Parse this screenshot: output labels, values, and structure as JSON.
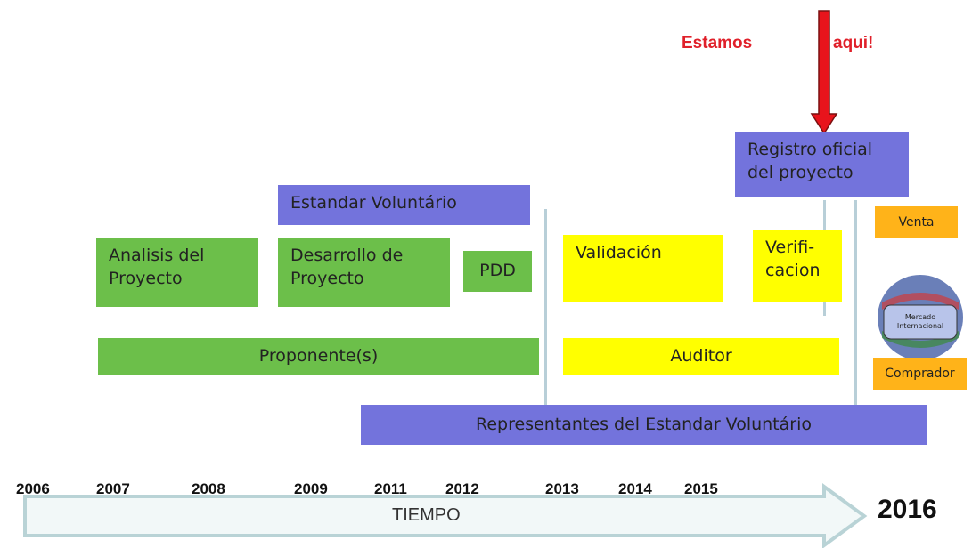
{
  "annotation": {
    "left": "Estamos",
    "right": "aqui!"
  },
  "boxes": {
    "registro": [
      "Registro oficial",
      "del proyecto"
    ],
    "estandar": [
      "Estandar Voluntário"
    ],
    "analisis": [
      "Analisis del",
      "Proyecto"
    ],
    "desarrollo": [
      "Desarrollo de",
      "Proyecto"
    ],
    "pdd": [
      "PDD"
    ],
    "proponente": [
      "Proponente(s)"
    ],
    "validacion": [
      "Validación"
    ],
    "verificacion": [
      "Verifi-",
      "cacion"
    ],
    "auditor": [
      "Auditor"
    ],
    "venta": [
      "Venta"
    ],
    "comprador": [
      "Comprador"
    ],
    "representantes": [
      "Representantes del Estandar Voluntário"
    ]
  },
  "globe_label": [
    "Mercado",
    "Internacional"
  ],
  "years": [
    "2006",
    "2007",
    "2008",
    "2009",
    "2011",
    "2012",
    "2013",
    "2014",
    "2015"
  ],
  "final_year": "2016",
  "timeline_label": "TIEMPO"
}
